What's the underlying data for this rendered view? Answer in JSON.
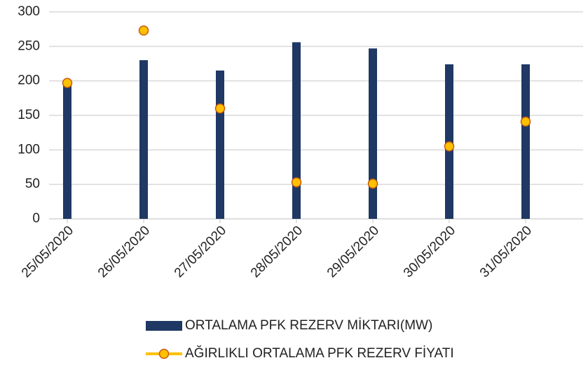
{
  "chart_data": {
    "type": "bar",
    "categories": [
      "25/05/2020",
      "26/05/2020",
      "27/05/2020",
      "28/05/2020",
      "29/05/2020",
      "30/05/2020",
      "31/05/2020"
    ],
    "series": [
      {
        "name": "ORTALAMA PFK REZERV MİKTARI(MW)",
        "type": "bar",
        "color": "#1f3864",
        "values": [
          200,
          230,
          215,
          256,
          247,
          224,
          224
        ]
      },
      {
        "name": "AĞIRLIKLI ORTALAMA PFK REZERV FİYATI",
        "type": "scatter",
        "color": "#ffc000",
        "edge_color": "#c55a11",
        "values": [
          197,
          273,
          160,
          53,
          51,
          105,
          141
        ]
      }
    ],
    "ylim": [
      0,
      300
    ],
    "yticks": [
      0,
      50,
      100,
      150,
      200,
      250,
      300
    ],
    "grid": true,
    "legend": "bottom"
  }
}
